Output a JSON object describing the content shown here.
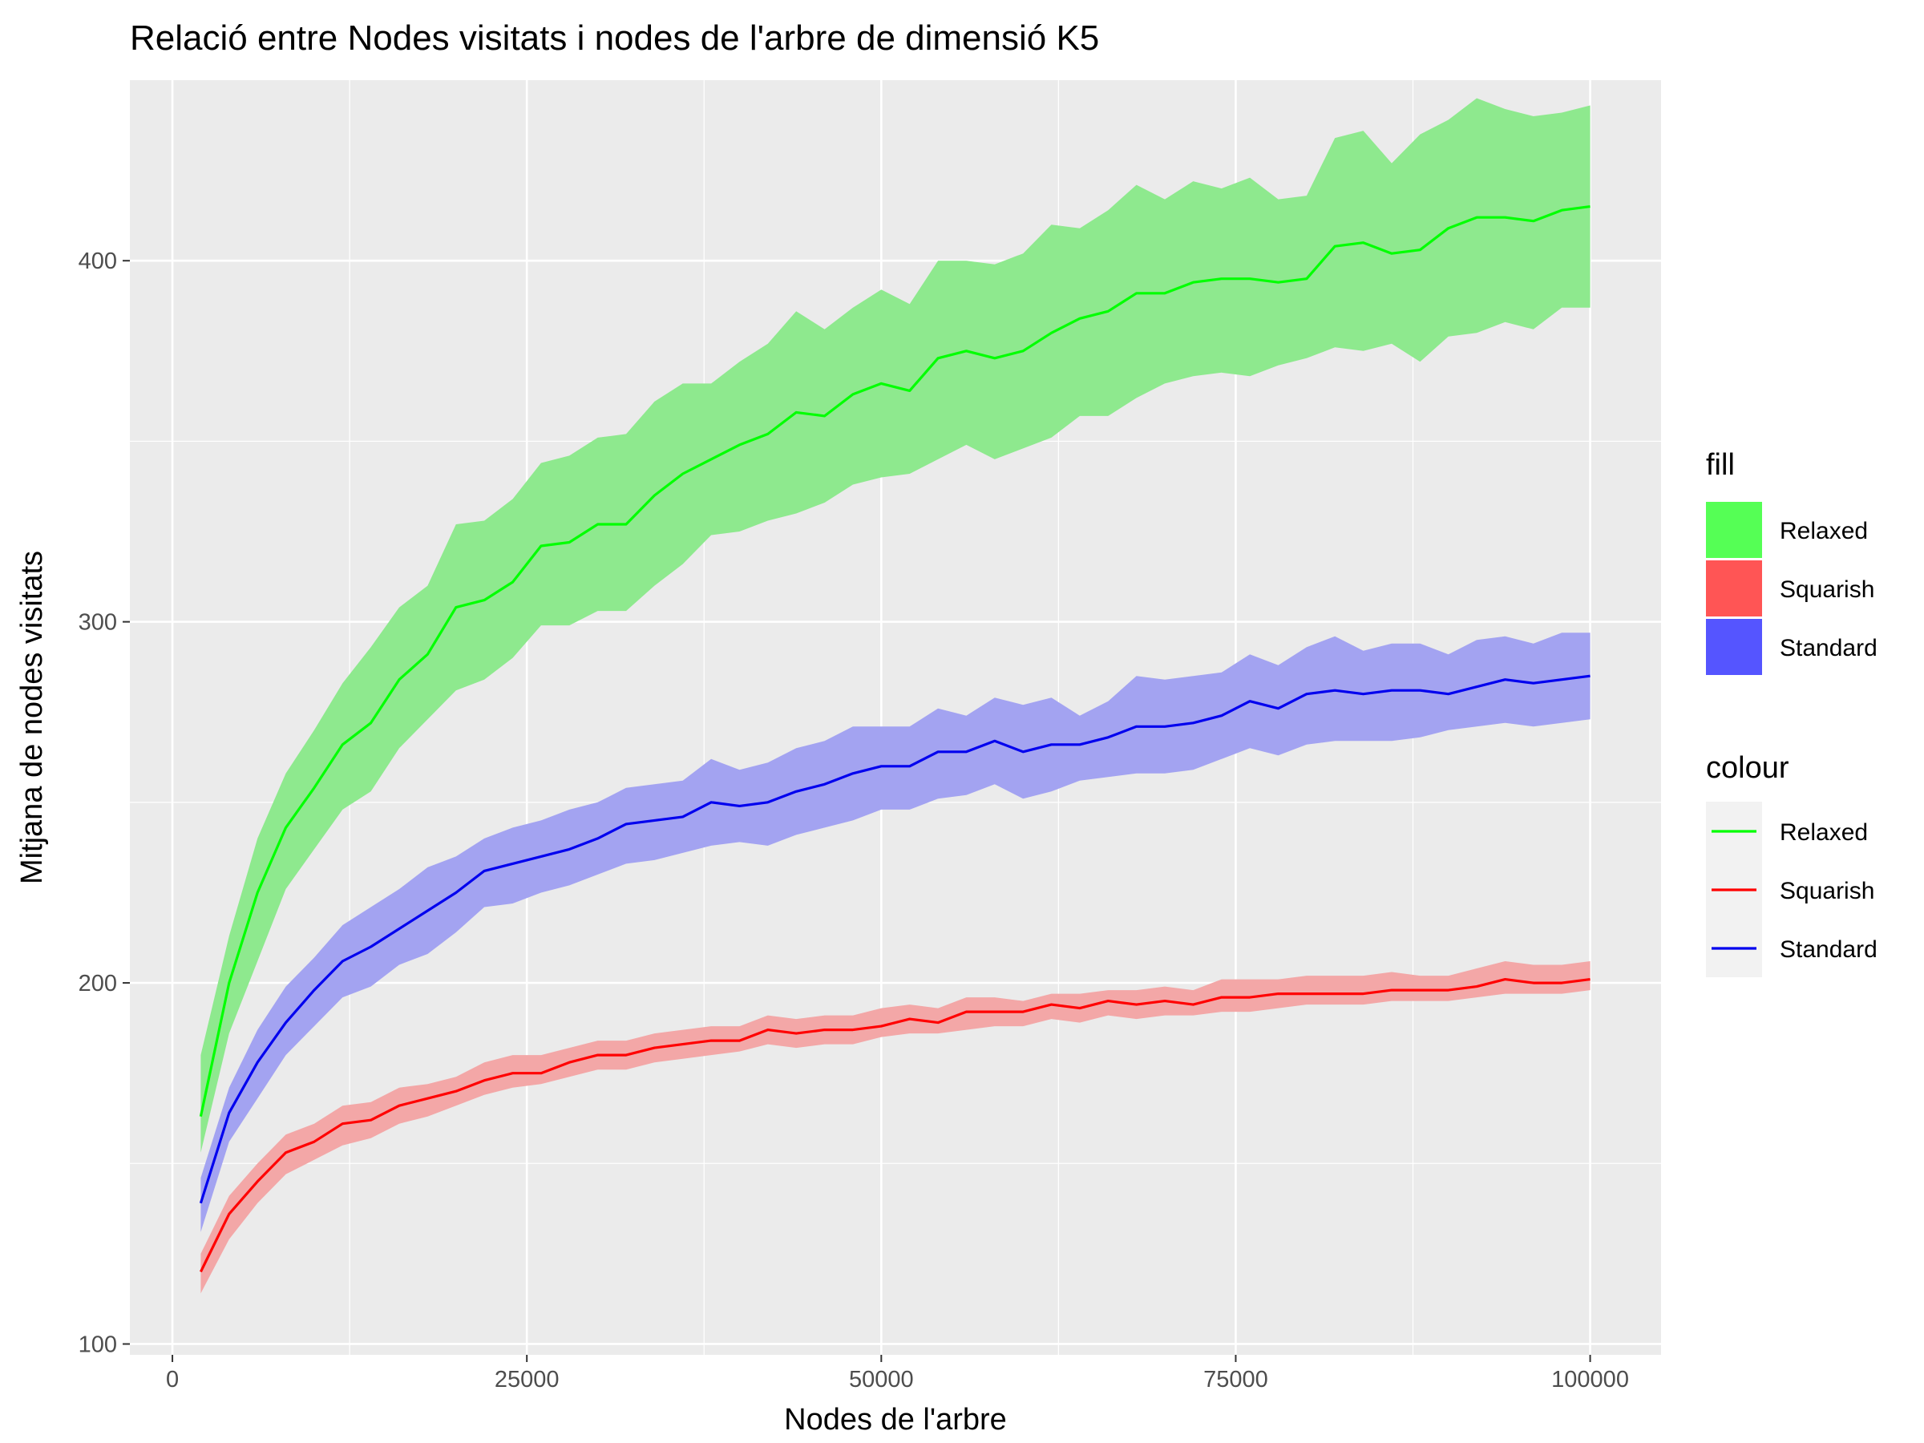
{
  "chart_data": {
    "type": "line",
    "title": "Relació entre Nodes visitats i nodes de l'arbre de dimensió K5",
    "xlabel": "Nodes de l'arbre",
    "ylabel": "Mitjana de nodes visitats",
    "xlim": [
      -3000,
      105000
    ],
    "ylim": [
      97,
      450
    ],
    "x_ticks": [
      0,
      25000,
      50000,
      75000,
      100000
    ],
    "x_tick_labels": [
      "0",
      "25000",
      "50000",
      "75000",
      "100000"
    ],
    "y_ticks": [
      100,
      200,
      300,
      400
    ],
    "y_tick_labels": [
      "100",
      "200",
      "300",
      "400"
    ],
    "grid": true,
    "legend_position": "right",
    "legends": [
      {
        "title": "fill",
        "kind": "fill",
        "entries": [
          "Relaxed",
          "Squarish",
          "Standard"
        ]
      },
      {
        "title": "colour",
        "kind": "colour",
        "entries": [
          "Relaxed",
          "Squarish",
          "Standard"
        ]
      }
    ],
    "x": [
      2000,
      4000,
      6000,
      8000,
      10000,
      12000,
      14000,
      16000,
      18000,
      20000,
      22000,
      24000,
      26000,
      28000,
      30000,
      32000,
      34000,
      36000,
      38000,
      40000,
      42000,
      44000,
      46000,
      48000,
      50000,
      52000,
      54000,
      56000,
      58000,
      60000,
      62000,
      64000,
      66000,
      68000,
      70000,
      72000,
      74000,
      76000,
      78000,
      80000,
      82000,
      84000,
      86000,
      88000,
      90000,
      92000,
      94000,
      96000,
      98000,
      100000
    ],
    "series": [
      {
        "name": "Relaxed",
        "line_color": "#00ff00",
        "fill_color": "#8ee98e",
        "values": [
          163,
          200,
          225,
          243,
          254,
          266,
          272,
          284,
          291,
          304,
          306,
          311,
          321,
          322,
          327,
          327,
          335,
          341,
          345,
          349,
          352,
          358,
          357,
          363,
          366,
          364,
          373,
          375,
          373,
          375,
          380,
          384,
          386,
          391,
          391,
          394,
          395,
          395,
          394,
          395,
          404,
          405,
          402,
          403,
          409,
          412,
          412,
          411,
          414,
          415
        ],
        "lower": [
          153,
          186,
          206,
          226,
          237,
          248,
          253,
          265,
          273,
          281,
          284,
          290,
          299,
          299,
          303,
          303,
          310,
          316,
          324,
          325,
          328,
          330,
          333,
          338,
          340,
          341,
          345,
          349,
          345,
          348,
          351,
          357,
          357,
          362,
          366,
          368,
          369,
          368,
          371,
          373,
          376,
          375,
          377,
          372,
          379,
          380,
          383,
          381,
          387,
          387
        ],
        "upper": [
          180,
          213,
          240,
          258,
          270,
          283,
          293,
          304,
          310,
          327,
          328,
          334,
          344,
          346,
          351,
          352,
          361,
          366,
          366,
          372,
          377,
          386,
          381,
          387,
          392,
          388,
          400,
          400,
          399,
          402,
          410,
          409,
          414,
          421,
          417,
          422,
          420,
          423,
          417,
          418,
          434,
          436,
          427,
          435,
          439,
          445,
          442,
          440,
          441,
          443
        ]
      },
      {
        "name": "Squarish",
        "line_color": "#ff0000",
        "fill_color": "#f3a7a7",
        "values": [
          120,
          136,
          145,
          153,
          156,
          161,
          162,
          166,
          168,
          170,
          173,
          175,
          175,
          178,
          180,
          180,
          182,
          183,
          184,
          184,
          187,
          186,
          187,
          187,
          188,
          190,
          189,
          192,
          192,
          192,
          194,
          193,
          195,
          194,
          195,
          194,
          196,
          196,
          197,
          197,
          197,
          197,
          198,
          198,
          198,
          199,
          201,
          200,
          200,
          201
        ],
        "lower": [
          114,
          129,
          139,
          147,
          151,
          155,
          157,
          161,
          163,
          166,
          169,
          171,
          172,
          174,
          176,
          176,
          178,
          179,
          180,
          181,
          183,
          182,
          183,
          183,
          185,
          186,
          186,
          187,
          188,
          188,
          190,
          189,
          191,
          190,
          191,
          191,
          192,
          192,
          193,
          194,
          194,
          194,
          195,
          195,
          195,
          196,
          197,
          197,
          197,
          198
        ],
        "upper": [
          125,
          141,
          150,
          158,
          161,
          166,
          167,
          171,
          172,
          174,
          178,
          180,
          180,
          182,
          184,
          184,
          186,
          187,
          188,
          188,
          191,
          190,
          191,
          191,
          193,
          194,
          193,
          196,
          196,
          195,
          197,
          197,
          198,
          198,
          199,
          198,
          201,
          201,
          201,
          202,
          202,
          202,
          203,
          202,
          202,
          204,
          206,
          205,
          205,
          206
        ]
      },
      {
        "name": "Standard",
        "line_color": "#0000ee",
        "fill_color": "#a3a3f1",
        "values": [
          139,
          164,
          178,
          189,
          198,
          206,
          210,
          215,
          220,
          225,
          231,
          233,
          235,
          237,
          240,
          244,
          245,
          246,
          250,
          249,
          250,
          253,
          255,
          258,
          260,
          260,
          264,
          264,
          267,
          264,
          266,
          266,
          268,
          271,
          271,
          272,
          274,
          278,
          276,
          280,
          281,
          280,
          281,
          281,
          280,
          282,
          284,
          283,
          284,
          285
        ],
        "lower": [
          131,
          156,
          168,
          180,
          188,
          196,
          199,
          205,
          208,
          214,
          221,
          222,
          225,
          227,
          230,
          233,
          234,
          236,
          238,
          239,
          238,
          241,
          243,
          245,
          248,
          248,
          251,
          252,
          255,
          251,
          253,
          256,
          257,
          258,
          258,
          259,
          262,
          265,
          263,
          266,
          267,
          267,
          267,
          268,
          270,
          271,
          272,
          271,
          272,
          273
        ],
        "upper": [
          146,
          171,
          187,
          199,
          207,
          216,
          221,
          226,
          232,
          235,
          240,
          243,
          245,
          248,
          250,
          254,
          255,
          256,
          262,
          259,
          261,
          265,
          267,
          271,
          271,
          271,
          276,
          274,
          279,
          277,
          279,
          274,
          278,
          285,
          284,
          285,
          286,
          291,
          288,
          293,
          296,
          292,
          294,
          294,
          291,
          295,
          296,
          294,
          297,
          297
        ]
      }
    ]
  }
}
